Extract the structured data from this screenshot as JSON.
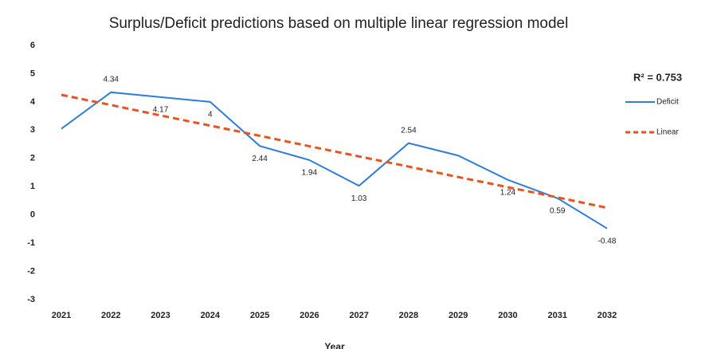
{
  "chart_data": {
    "type": "line",
    "title": "Surplus/Deficit predictions based on multiple linear regression model",
    "x_label": "Year",
    "annotation": "R² = 0.753",
    "categories": [
      "2021",
      "2022",
      "2023",
      "2024",
      "2025",
      "2026",
      "2027",
      "2028",
      "2029",
      "2030",
      "2031",
      "2032"
    ],
    "series": [
      {
        "name": "Deficit",
        "color": "#2f7ed8",
        "dash": false,
        "values": [
          3.05,
          4.34,
          4.17,
          4,
          2.44,
          1.94,
          1.03,
          2.54,
          2.1,
          1.24,
          0.59,
          -0.48
        ],
        "value_labels": [
          null,
          "4.34",
          "4.17",
          "4",
          "2.44",
          "1.94",
          "1.03",
          "2.54",
          null,
          "1.24",
          "0.59",
          "-0.48"
        ]
      },
      {
        "name": "Linear",
        "color": "#e8531f",
        "dash": true,
        "values": [
          4.25,
          3.89,
          3.52,
          3.16,
          2.8,
          2.43,
          2.07,
          1.71,
          1.34,
          0.98,
          0.62,
          0.25
        ]
      }
    ],
    "ylim": [
      -3,
      6
    ],
    "yticks": [
      -3,
      -2,
      -1,
      0,
      1,
      2,
      3,
      4,
      5,
      6
    ],
    "grid": false,
    "legend": "right"
  }
}
